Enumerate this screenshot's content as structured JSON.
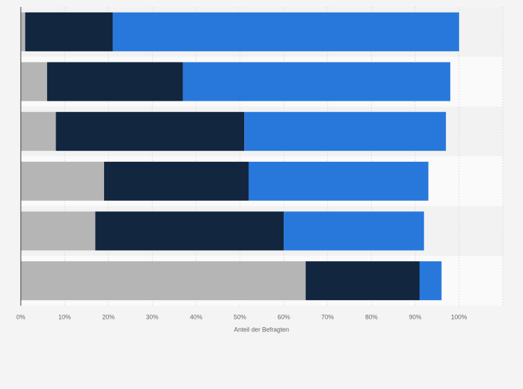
{
  "chart_data": {
    "type": "stacked-barh",
    "categories": [
      null,
      null,
      null,
      null,
      null,
      null
    ],
    "series": [
      {
        "color": "#b5b5b5",
        "values": [
          1,
          6,
          8,
          19,
          17,
          65
        ]
      },
      {
        "color": "#12263f",
        "values": [
          20,
          31,
          43,
          33,
          43,
          26
        ]
      },
      {
        "color": "#2878dc",
        "values": [
          79,
          61,
          46,
          41,
          32,
          5
        ]
      }
    ],
    "xlabel": "Anteil der Befragten",
    "xlim": [
      0,
      110
    ],
    "xticks": [
      {
        "value": 0,
        "label": "0%"
      },
      {
        "value": 10,
        "label": "10%"
      },
      {
        "value": 20,
        "label": "20%"
      },
      {
        "value": 30,
        "label": "30%"
      },
      {
        "value": 40,
        "label": "40%"
      },
      {
        "value": 50,
        "label": "50%"
      },
      {
        "value": 60,
        "label": "60%"
      },
      {
        "value": 70,
        "label": "70%"
      },
      {
        "value": 80,
        "label": "80%"
      },
      {
        "value": 90,
        "label": "90%"
      },
      {
        "value": 100,
        "label": "100%"
      }
    ],
    "grid": true
  }
}
